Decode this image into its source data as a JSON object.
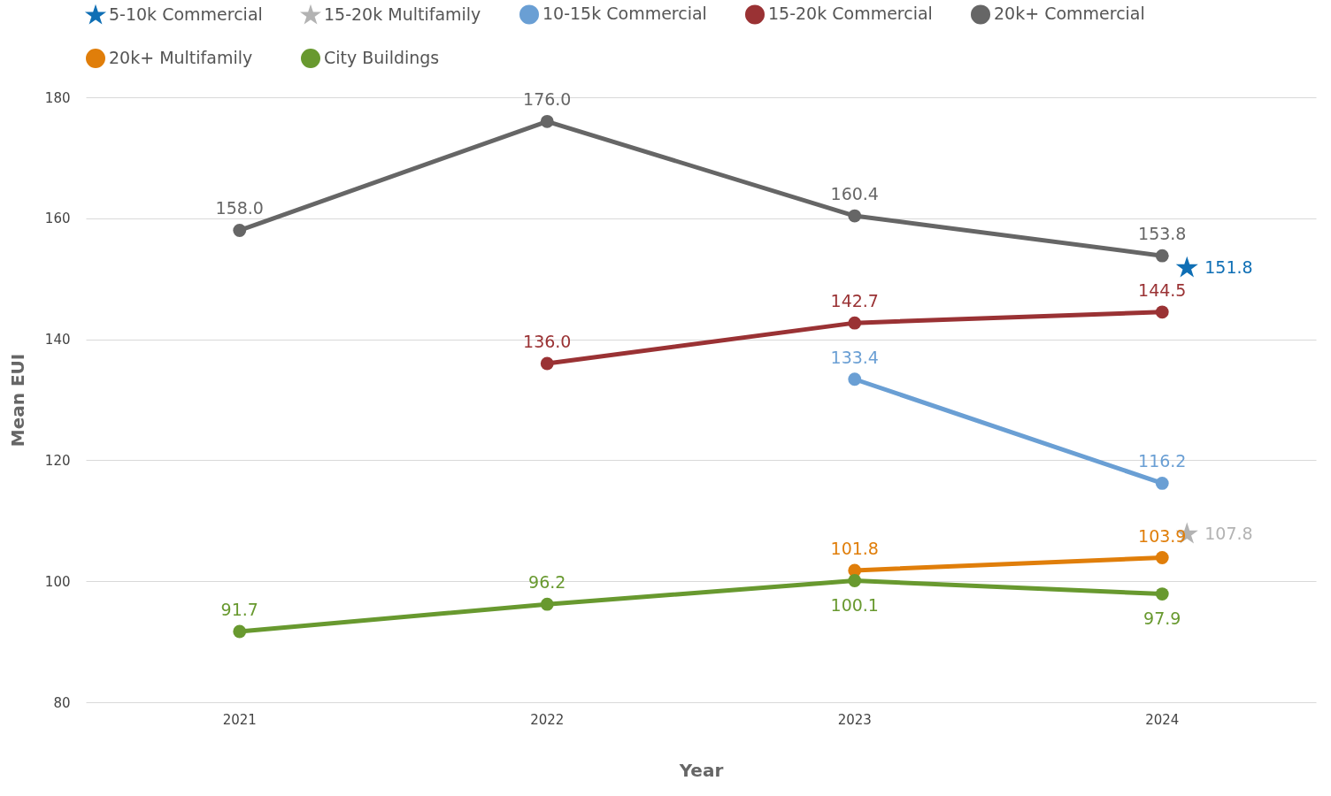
{
  "chart_data": {
    "type": "line",
    "xlabel": "Year",
    "ylabel": "Mean EUI",
    "categories": [
      "2021",
      "2022",
      "2023",
      "2024"
    ],
    "ylim": [
      80,
      180
    ],
    "yticks": [
      80,
      100,
      120,
      140,
      160,
      180
    ],
    "grid": "y",
    "legend": "top",
    "marker": "circle",
    "line_style": "solid",
    "series": [
      {
        "name": "5-10k Commercial",
        "type": "scatter",
        "marker": "star",
        "color": "#0f6fb5",
        "values": [
          null,
          null,
          null,
          151.8
        ],
        "value_labels": [
          null,
          null,
          null,
          "151.8"
        ]
      },
      {
        "name": "15-20k Multifamily",
        "type": "scatter",
        "marker": "star",
        "color": "#b3b3b3",
        "values": [
          null,
          null,
          null,
          107.8
        ],
        "value_labels": [
          null,
          null,
          null,
          "107.8"
        ]
      },
      {
        "name": "10-15k Commercial",
        "color": "#6a9fd4",
        "values": [
          null,
          null,
          133.4,
          116.2
        ],
        "value_labels": [
          null,
          null,
          "133.4",
          "116.2"
        ]
      },
      {
        "name": "15-20k Commercial",
        "color": "#9a3234",
        "values": [
          null,
          136.0,
          142.7,
          144.5
        ],
        "value_labels": [
          null,
          "136.0",
          "142.7",
          "144.5"
        ]
      },
      {
        "name": "20k+ Commercial",
        "color": "#666666",
        "values": [
          158.0,
          176.0,
          160.4,
          153.8
        ],
        "value_labels": [
          "158.0",
          "176.0",
          "160.4",
          "153.8"
        ]
      },
      {
        "name": "20k+ Multifamily",
        "color": "#e07e0a",
        "values": [
          null,
          null,
          101.8,
          103.9
        ],
        "value_labels": [
          null,
          null,
          "101.8",
          "103.9"
        ]
      },
      {
        "name": "City Buildings",
        "color": "#68992f",
        "values": [
          91.7,
          96.2,
          100.1,
          97.9
        ],
        "value_labels": [
          "91.7",
          "96.2",
          "100.1",
          "97.9"
        ]
      }
    ]
  }
}
